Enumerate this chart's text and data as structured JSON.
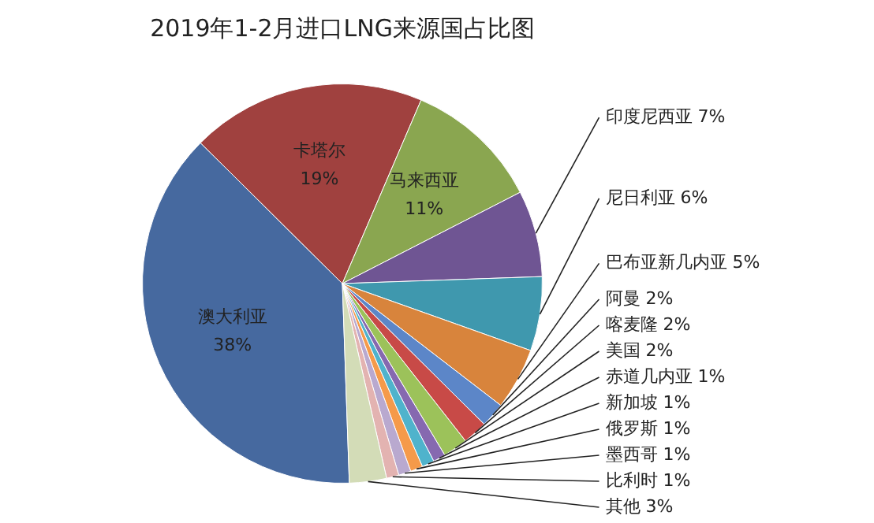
{
  "chart_data": {
    "type": "pie",
    "title": "2019年1-2月进口LNG来源国占比图",
    "categories": [
      "澳大利亚",
      "卡塔尔",
      "马来西亚",
      "印度尼西亚",
      "尼日利亚",
      "巴布亚新几内亚",
      "阿曼",
      "喀麦隆",
      "美国",
      "赤道几内亚",
      "新加坡",
      "俄罗斯",
      "墨西哥",
      "比利时",
      "其他"
    ],
    "values": [
      38,
      19,
      11,
      7,
      6,
      5,
      2,
      2,
      2,
      1,
      1,
      1,
      1,
      1,
      3
    ],
    "value_labels": [
      "38%",
      "19%",
      "11%",
      "7%",
      "6%",
      "5%",
      "2%",
      "2%",
      "2%",
      "1%",
      "1%",
      "1%",
      "1%",
      "1%",
      "3%"
    ],
    "colors": [
      "#46699f",
      "#a0413f",
      "#8aa650",
      "#6f5593",
      "#3f98ae",
      "#d8843c",
      "#5c86c8",
      "#c84a47",
      "#9cc25a",
      "#8669b0",
      "#4fb3cc",
      "#f59a4a",
      "#b9a9cf",
      "#e3b3b1",
      "#d3dcb7"
    ],
    "legend": false
  }
}
